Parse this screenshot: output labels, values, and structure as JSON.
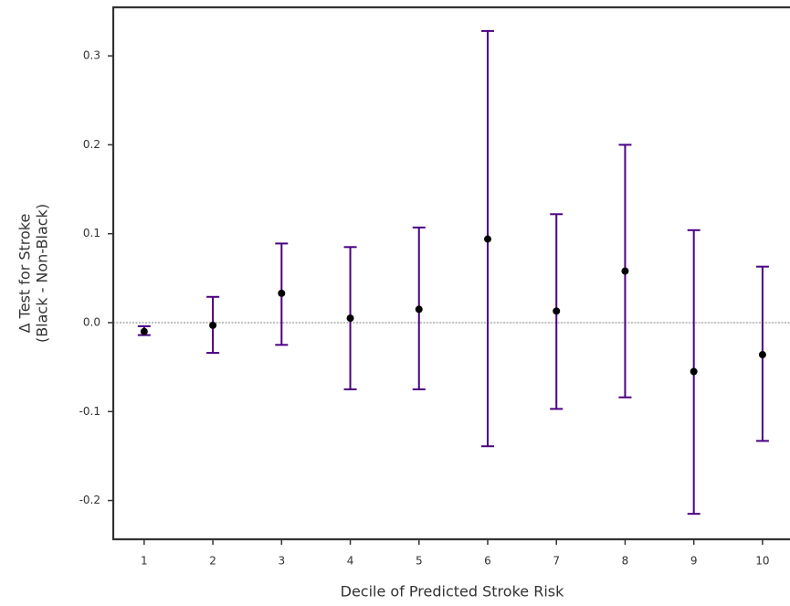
{
  "chart_data": {
    "type": "errorbar",
    "x": [
      1,
      2,
      3,
      4,
      5,
      6,
      7,
      8,
      9,
      10
    ],
    "series": [
      {
        "color": "#4b0082",
        "point_color": "#000000",
        "values": [
          -0.01,
          -0.003,
          0.033,
          0.005,
          0.015,
          0.094,
          0.013,
          0.058,
          -0.055,
          -0.036
        ],
        "lower": [
          -0.014,
          -0.034,
          -0.025,
          -0.075,
          -0.075,
          -0.139,
          -0.097,
          -0.084,
          -0.215,
          -0.133
        ],
        "upper": [
          -0.004,
          0.029,
          0.089,
          0.085,
          0.107,
          0.328,
          0.122,
          0.2,
          0.104,
          0.063
        ]
      }
    ],
    "hline": 0,
    "xlim": [
      0.55,
      10.4
    ],
    "xticks": [
      1,
      2,
      3,
      4,
      5,
      6,
      7,
      8,
      9,
      10
    ],
    "ylim": [
      -0.2436,
      0.3546
    ],
    "yticks": [
      -0.2,
      -0.1,
      {
        "value": 0,
        "label": "0.0"
      },
      0.1,
      0.2,
      0.3
    ],
    "xlabel": "Decile of Predicted Stroke Risk",
    "ylabel": [
      "Δ Test for Stroke",
      "(Black - Non-Black)"
    ]
  }
}
